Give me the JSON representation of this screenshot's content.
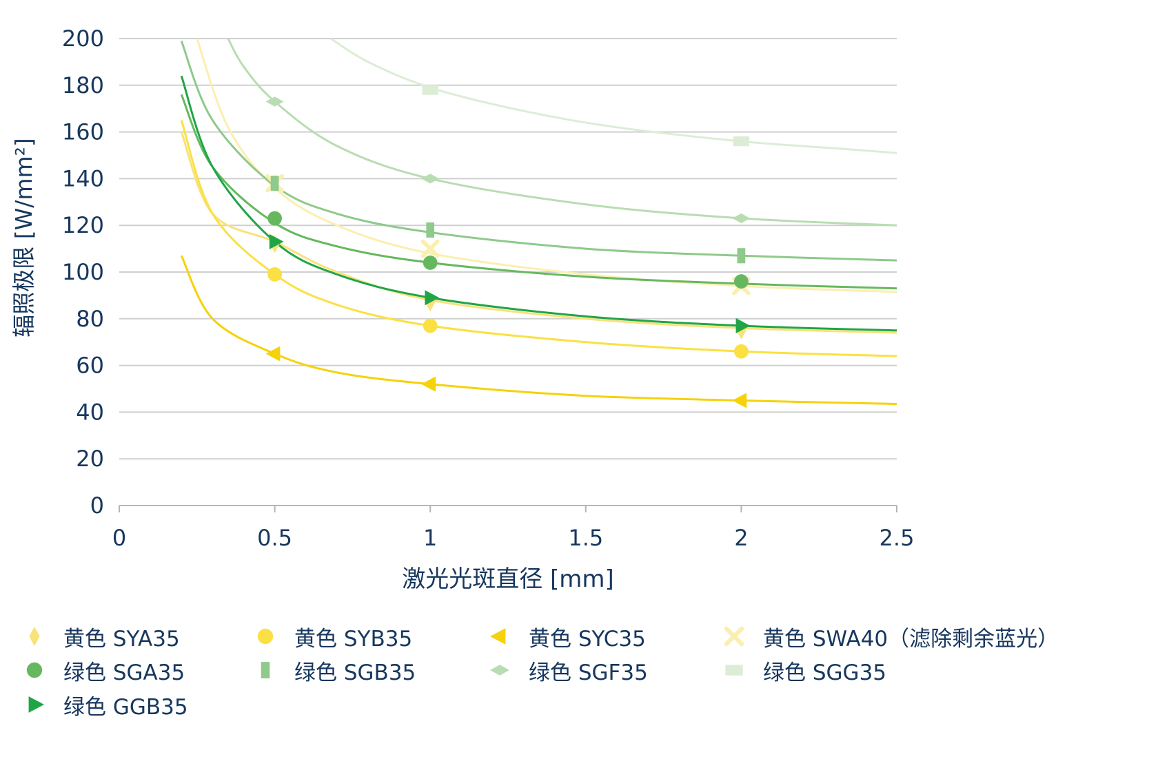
{
  "chart_data": {
    "type": "line",
    "title": "",
    "xlabel": "激光光斑直径 [mm]",
    "ylabel": "辐照极限 [W/mm²]",
    "xlim": [
      0,
      2.5
    ],
    "ylim": [
      0,
      200
    ],
    "xticks": [
      "0",
      "0.5",
      "1",
      "1.5",
      "2",
      "2.5"
    ],
    "yticks": [
      "0",
      "20",
      "40",
      "60",
      "80",
      "100",
      "120",
      "140",
      "160",
      "180",
      "200"
    ],
    "grid": "horizontal",
    "legend_position": "bottom",
    "series": [
      {
        "name": "黄色 SYA35",
        "marker": "diamond",
        "color": "#f8e27a",
        "x": [
          0.5,
          1,
          2
        ],
        "y": [
          112,
          87,
          75
        ],
        "curve": {
          "x": [
            0.2,
            0.3,
            0.5,
            0.7,
            1,
            1.5,
            2,
            2.5
          ],
          "y": [
            160,
            125,
            113,
            100,
            88,
            80,
            76,
            74
          ]
        }
      },
      {
        "name": "黄色 SYB35",
        "marker": "circle",
        "color": "#fbe043",
        "x": [
          0.5,
          1,
          2
        ],
        "y": [
          99,
          77,
          66
        ],
        "curve": {
          "x": [
            0.2,
            0.3,
            0.5,
            0.7,
            1,
            1.5,
            2,
            2.5
          ],
          "y": [
            165,
            125,
            99,
            86,
            77,
            70,
            66,
            64
          ]
        }
      },
      {
        "name": "黄色 SYC35",
        "marker": "triangle-left",
        "color": "#f5d20a",
        "x": [
          0.5,
          1,
          2
        ],
        "y": [
          65,
          52,
          45
        ],
        "curve": {
          "x": [
            0.2,
            0.3,
            0.5,
            0.7,
            1,
            1.5,
            2,
            2.5
          ],
          "y": [
            107,
            80,
            65,
            57,
            52,
            47,
            45,
            43.5
          ]
        }
      },
      {
        "name": "黄色 SWA40（滤除剩余蓝光）",
        "marker": "x",
        "color": "#fbefb0",
        "x": [
          0.5,
          1,
          2
        ],
        "y": [
          138,
          110,
          94
        ],
        "curve": {
          "x": [
            0.25,
            0.35,
            0.5,
            0.7,
            1,
            1.5,
            2,
            2.5
          ],
          "y": [
            200,
            162,
            136,
            120,
            108,
            99,
            94,
            91.5
          ]
        }
      },
      {
        "name": "绿色 SGA35",
        "marker": "circle",
        "color": "#66b85f",
        "x": [
          0.5,
          1,
          2
        ],
        "y": [
          123,
          104,
          96
        ],
        "curve": {
          "x": [
            0.2,
            0.3,
            0.5,
            0.7,
            1,
            1.5,
            2,
            2.5
          ],
          "y": [
            176,
            145,
            121,
            111,
            104,
            98,
            95,
            93
          ]
        }
      },
      {
        "name": "绿色 SGB35",
        "marker": "rect",
        "color": "#8fc98b",
        "x": [
          0.5,
          1,
          2
        ],
        "y": [
          138,
          118,
          107
        ],
        "curve": {
          "x": [
            0.2,
            0.3,
            0.5,
            0.7,
            1,
            1.5,
            2,
            2.5
          ],
          "y": [
            199,
            165,
            137,
            125,
            117,
            110,
            107,
            105
          ]
        }
      },
      {
        "name": "绿色 SGF35",
        "marker": "diamond-wide",
        "color": "#b9dcb2",
        "x": [
          0.5,
          1,
          2
        ],
        "y": [
          173,
          140,
          123
        ],
        "curve": {
          "x": [
            0.35,
            0.4,
            0.5,
            0.7,
            1,
            1.5,
            2,
            2.5
          ],
          "y": [
            200,
            188,
            173,
            154,
            140,
            129,
            123,
            120
          ]
        }
      },
      {
        "name": "绿色 SGG35",
        "marker": "square",
        "color": "#dcedd6",
        "x": [
          1,
          2
        ],
        "y": [
          178,
          156
        ],
        "curve": {
          "x": [
            0.68,
            0.8,
            1,
            1.3,
            1.6,
            2,
            2.3,
            2.5
          ],
          "y": [
            200,
            190,
            179,
            169,
            162,
            156,
            153,
            151
          ]
        }
      },
      {
        "name": "绿色 GGB35",
        "marker": "triangle-right",
        "color": "#20a546",
        "x": [
          0.5,
          1,
          2
        ],
        "y": [
          113,
          89,
          77
        ],
        "curve": {
          "x": [
            0.2,
            0.3,
            0.5,
            0.7,
            1,
            1.5,
            2,
            2.5
          ],
          "y": [
            184,
            145,
            113,
            99,
            89,
            81,
            77,
            75
          ]
        }
      }
    ]
  },
  "colors": {
    "axis_text": "#17375e",
    "grid": "#cfcfcf",
    "axis": "#b5b5b5"
  }
}
